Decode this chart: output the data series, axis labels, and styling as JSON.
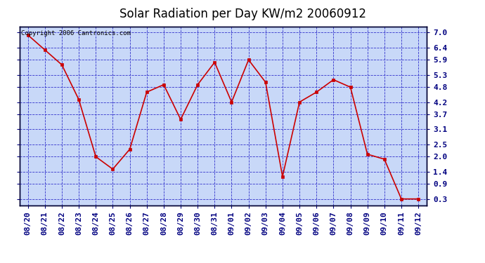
{
  "title": "Solar Radiation per Day KW/m2 20060912",
  "copyright_text": "Copyright 2006 Cantronics.com",
  "x_labels": [
    "08/20",
    "08/21",
    "08/22",
    "08/23",
    "08/24",
    "08/25",
    "08/26",
    "08/27",
    "08/28",
    "08/29",
    "08/30",
    "08/31",
    "09/01",
    "09/02",
    "09/03",
    "09/04",
    "09/05",
    "09/06",
    "09/07",
    "09/08",
    "09/09",
    "09/10",
    "09/11",
    "09/12"
  ],
  "y_values": [
    6.9,
    6.3,
    5.7,
    4.3,
    2.0,
    1.5,
    2.3,
    4.6,
    4.9,
    3.5,
    4.9,
    5.8,
    4.2,
    5.9,
    5.0,
    1.2,
    4.2,
    4.6,
    5.1,
    4.8,
    2.1,
    1.9,
    0.3,
    0.3
  ],
  "line_color": "#cc0000",
  "marker_color": "#cc0000",
  "fig_bg_color": "#ffffff",
  "plot_bg_color": "#c8d8f8",
  "grid_color": "#3333cc",
  "title_color": "#000000",
  "y_ticks": [
    0.3,
    0.9,
    1.4,
    2.0,
    2.5,
    3.1,
    3.7,
    4.2,
    4.8,
    5.3,
    5.9,
    6.4,
    7.0
  ],
  "y_min": 0.05,
  "y_max": 7.25,
  "title_fontsize": 12,
  "tick_fontsize": 8,
  "copyright_fontsize": 6.5,
  "label_color": "#000080"
}
